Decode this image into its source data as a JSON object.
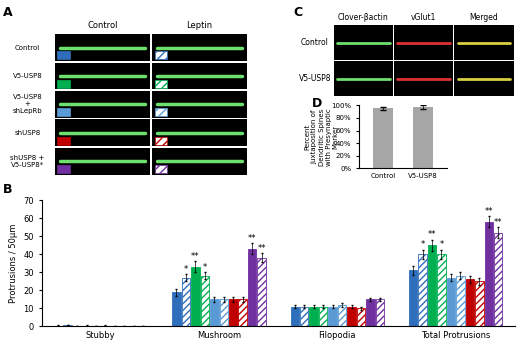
{
  "panels": {
    "A": {
      "columns": [
        "Control",
        "Leptin"
      ],
      "rows": [
        "Control",
        "V5-USP8",
        "V5-USP8\n+\nshLepRb",
        "shUSP8",
        "shUSP8 +\nV5-USP8*"
      ]
    },
    "C": {
      "columns": [
        "Clover-βactin",
        "vGlut1",
        "Merged"
      ],
      "rows": [
        "Control",
        "V5-USP8"
      ]
    }
  },
  "chart_data": [
    {
      "type": "bar",
      "panel_label": "B",
      "categories": [
        "Stubby",
        "Mushroom",
        "Filopodia",
        "Total Protrusions"
      ],
      "ylabel": "Protrusions / 50μm",
      "ylim": [
        0,
        70
      ],
      "yticks": [
        0,
        10,
        20,
        30,
        40,
        50,
        60,
        70
      ],
      "series": [
        {
          "color": "#2f6eba",
          "values": [
            0.5,
            19,
            11,
            31
          ],
          "errors": [
            0.2,
            2,
            1,
            2.5
          ],
          "significance": [
            null,
            null,
            null,
            null
          ]
        },
        {
          "color": "#2f6eba",
          "values": [
            0.8,
            27,
            11,
            40
          ],
          "errors": [
            0.2,
            2,
            1,
            2.5
          ],
          "significance": [
            null,
            "*",
            null,
            "*"
          ]
        },
        {
          "color": "#00b050",
          "values": [
            0.3,
            33,
            11,
            45
          ],
          "errors": [
            0.2,
            3,
            1,
            3
          ],
          "significance": [
            null,
            "**",
            null,
            "**"
          ]
        },
        {
          "color": "#00b050",
          "values": [
            0.5,
            28,
            11,
            40
          ],
          "errors": [
            0.2,
            2,
            1,
            2.5
          ],
          "significance": [
            null,
            "*",
            null,
            "*"
          ]
        },
        {
          "color": "#5b9bd5",
          "values": [
            0.3,
            15,
            11,
            27
          ],
          "errors": [
            0.2,
            1.5,
            1,
            2
          ],
          "significance": [
            null,
            null,
            null,
            null
          ]
        },
        {
          "color": "#5b9bd5",
          "values": [
            0.4,
            15,
            12,
            28
          ],
          "errors": [
            0.2,
            1.5,
            1,
            2
          ],
          "significance": [
            null,
            null,
            null,
            null
          ]
        },
        {
          "color": "#c00000",
          "values": [
            0.3,
            15,
            11,
            26
          ],
          "errors": [
            0.2,
            1.5,
            1,
            2
          ],
          "significance": [
            null,
            null,
            null,
            null
          ]
        },
        {
          "color": "#c00000",
          "values": [
            0.3,
            15,
            10,
            25
          ],
          "errors": [
            0.2,
            1.5,
            1,
            2
          ],
          "significance": [
            null,
            null,
            null,
            null
          ]
        },
        {
          "color": "#7030a0",
          "values": [
            0.3,
            43,
            15,
            58
          ],
          "errors": [
            0.2,
            3,
            1,
            3
          ],
          "significance": [
            null,
            "**",
            null,
            "**"
          ]
        },
        {
          "color": "#7030a0",
          "values": [
            0.3,
            38,
            15,
            52
          ],
          "errors": [
            0.2,
            2.5,
            1,
            3
          ],
          "significance": [
            null,
            "**",
            null,
            "**"
          ]
        }
      ]
    },
    {
      "type": "bar",
      "panel_label": "D",
      "categories": [
        "Control",
        "V5-USP8"
      ],
      "values": [
        95,
        97
      ],
      "errors": [
        2,
        3
      ],
      "color": "#a6a6a6",
      "ylabel": "Percent Juxtaposition of Dendritic Spines with Presynaptic Marker",
      "ylim": [
        0,
        100
      ],
      "yticks": [
        {
          "value": 0,
          "label": "0%"
        },
        {
          "value": 20,
          "label": "20%"
        },
        {
          "value": 40,
          "label": "40%"
        },
        {
          "value": 60,
          "label": "60%"
        },
        {
          "value": 80,
          "label": "80%"
        },
        {
          "value": 100,
          "label": "100%"
        }
      ]
    }
  ]
}
